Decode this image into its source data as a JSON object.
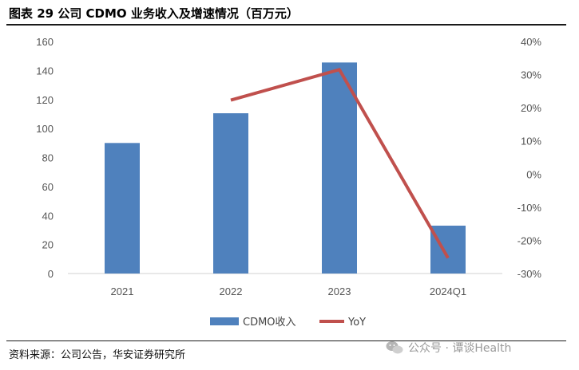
{
  "header": {
    "title": "图表 29 公司 CDMO 业务收入及增速情况（百万元）"
  },
  "footer": {
    "source": "资料来源：公司公告，华安证券研究所",
    "watermark": "公众号 · 谭谈Health"
  },
  "colors": {
    "bar": "#4F81BD",
    "line": "#C0504D"
  },
  "chart_data": {
    "type": "bar",
    "categories": [
      "2021",
      "2022",
      "2023",
      "2024Q1"
    ],
    "series": [
      {
        "name": "CDMO收入",
        "type": "bar",
        "axis": "left",
        "values": [
          90,
          110.5,
          145.5,
          33
        ]
      },
      {
        "name": "YoY",
        "type": "line",
        "axis": "right",
        "values": [
          null,
          22.3,
          31.5,
          -25.3
        ]
      }
    ],
    "y_left": {
      "min": 0,
      "max": 160,
      "ticks": [
        "0",
        "20",
        "40",
        "60",
        "80",
        "100",
        "120",
        "140",
        "160"
      ]
    },
    "y_right": {
      "min": -30,
      "max": 40,
      "ticks": [
        "-30%",
        "-20%",
        "-10%",
        "0%",
        "10%",
        "20%",
        "30%",
        "40%"
      ]
    },
    "grid": false,
    "legend": "bottom"
  }
}
